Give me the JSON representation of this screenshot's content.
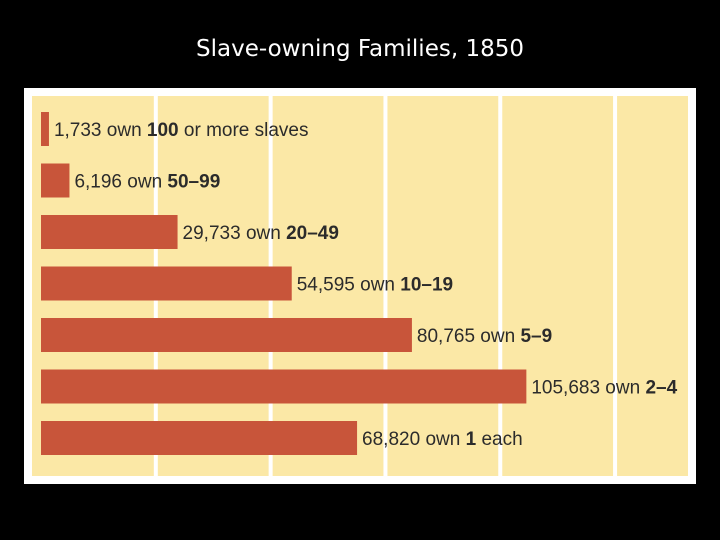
{
  "slide": {
    "title": "Slave-owning Families, 1850"
  },
  "colors": {
    "background": "#000000",
    "panel": "#fbe8a6",
    "bar": "#c8553a",
    "grid": "#ffffff",
    "label": "#2b2b2b"
  },
  "chart_data": {
    "type": "bar",
    "orientation": "horizontal",
    "title": "Slave-owning Families, 1850",
    "xlim": [
      0,
      135000
    ],
    "grid": true,
    "categories": [
      "100 or more slaves",
      "50–99",
      "20–49",
      "10–19",
      "5–9",
      "2–4",
      "1 each"
    ],
    "values": [
      1733,
      6196,
      29733,
      54595,
      80765,
      105683,
      68820
    ],
    "labels": [
      {
        "count": "1,733",
        "mid": " own ",
        "bold": "100",
        "tail": " or more slaves"
      },
      {
        "count": "6,196",
        "mid": " own ",
        "bold": "50–99",
        "tail": ""
      },
      {
        "count": "29,733",
        "mid": " own ",
        "bold": "20–49",
        "tail": ""
      },
      {
        "count": "54,595",
        "mid": " own ",
        "bold": "10–19",
        "tail": ""
      },
      {
        "count": "80,765",
        "mid": " own ",
        "bold": "5–9",
        "tail": ""
      },
      {
        "count": "105,683",
        "mid": " own ",
        "bold": "2–4",
        "tail": ""
      },
      {
        "count": "68,820",
        "mid": " own ",
        "bold": "1",
        "tail": " each"
      }
    ]
  }
}
